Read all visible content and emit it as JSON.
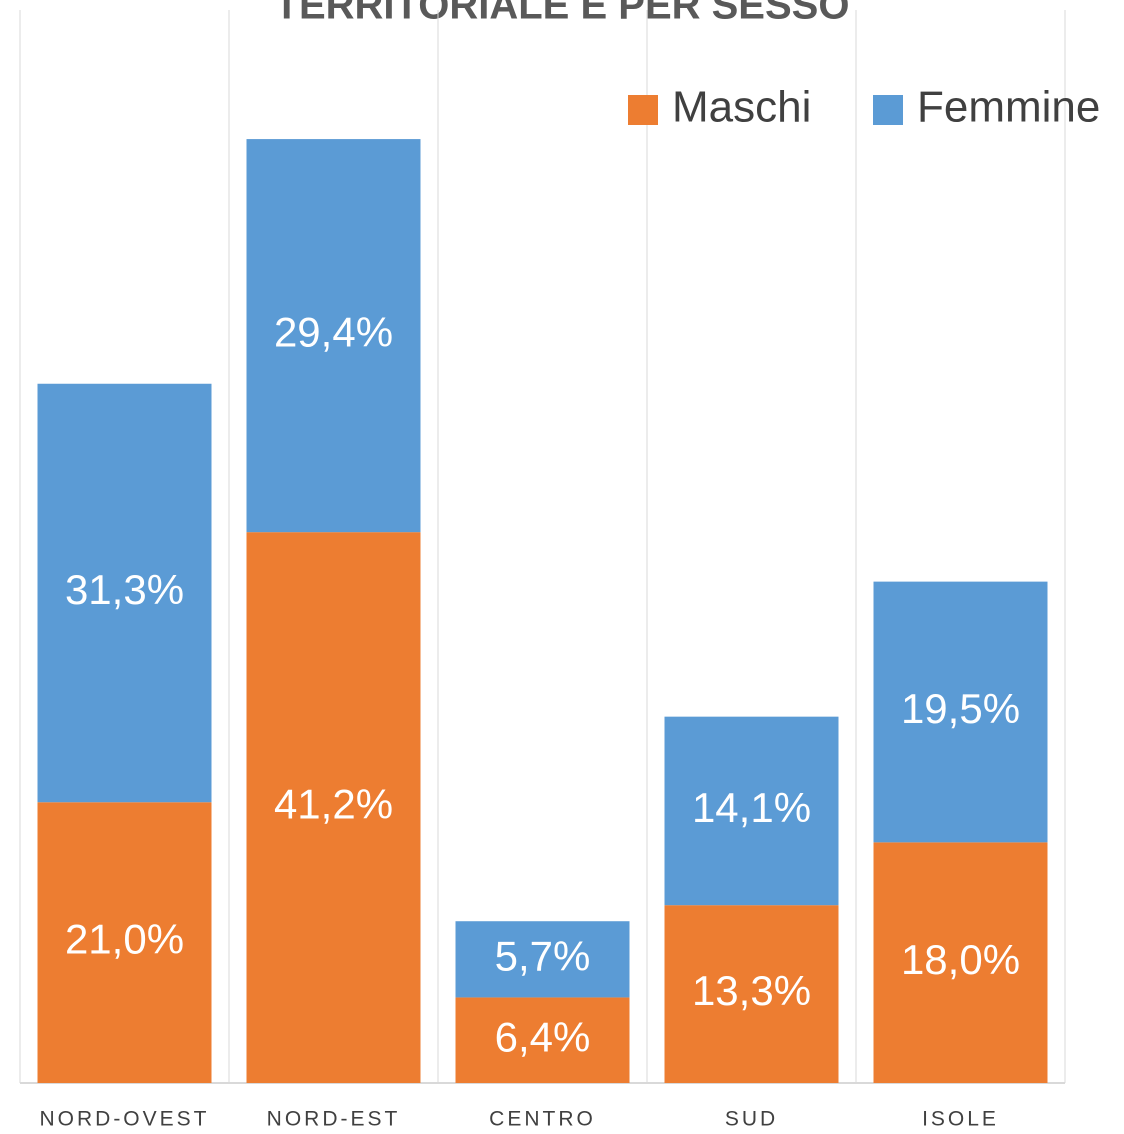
{
  "chart_data": {
    "type": "stacked_bar",
    "title": "TERRITORIALE E PER SESSO",
    "categories": [
      "NORD-OVEST",
      "NORD-EST",
      "CENTRO",
      "SUD",
      "ISOLE"
    ],
    "series": [
      {
        "name": "Maschi",
        "color": "#ed7d31",
        "values": [
          21.0,
          41.2,
          6.4,
          13.3,
          18.0
        ],
        "value_labels": [
          "21,0%",
          "41,2%",
          "6,4%",
          "13,3%",
          "18,0%"
        ]
      },
      {
        "name": "Femmine",
        "color": "#5b9bd5",
        "values": [
          31.3,
          29.4,
          5.7,
          14.1,
          19.5
        ],
        "value_labels": [
          "31,3%",
          "29,4%",
          "5,7%",
          "14,1%",
          "19,5%"
        ]
      }
    ],
    "legend": "top-right"
  }
}
